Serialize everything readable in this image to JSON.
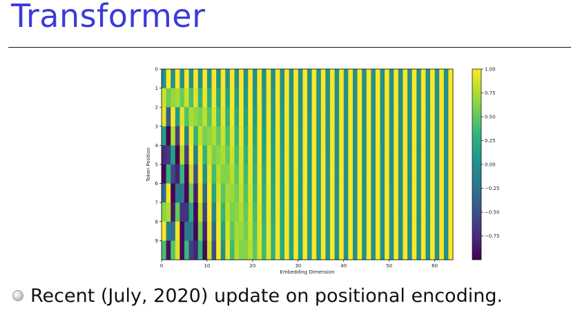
{
  "slide": {
    "title": "Transformer",
    "bullet_text": "Recent (July, 2020) update on positional encoding."
  },
  "colors": {
    "title": "#3b3bd9",
    "rule": "#111111",
    "viridis": [
      "#440154",
      "#482878",
      "#3e4989",
      "#31688e",
      "#26828e",
      "#1f9e89",
      "#35b779",
      "#6ece58",
      "#b5de2b",
      "#fde725"
    ]
  },
  "chart_data": {
    "type": "heatmap",
    "title": "",
    "xlabel": "Embedding Dimension",
    "ylabel": "Token Position",
    "x_ticks": [
      0,
      10,
      20,
      30,
      40,
      50,
      60
    ],
    "y_ticks": [
      0,
      1,
      2,
      3,
      4,
      5,
      6,
      7,
      8,
      9
    ],
    "xlim": [
      0,
      64
    ],
    "ylim": [
      10,
      0
    ],
    "n_positions": 10,
    "n_dimensions": 64,
    "d_model": 64,
    "formula": "even columns sin(pos / 10000^(i/64)); odd columns cos(pos / 10000^((i-1)/64))",
    "colorbar": {
      "vmin": -1.0,
      "vmax": 1.0,
      "colormap": "viridis",
      "tick_values": [
        1.0,
        0.75,
        0.5,
        0.25,
        0.0,
        -0.25,
        -0.5,
        -0.75
      ],
      "tick_labels": [
        "1.00",
        "0.75",
        "0.50",
        "0.25",
        "0.00",
        "−0.25",
        "−0.50",
        "−0.75"
      ]
    }
  }
}
